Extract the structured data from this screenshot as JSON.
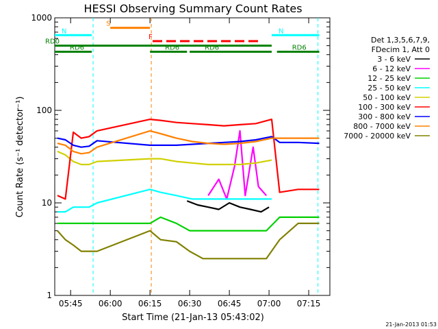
{
  "chart_data": {
    "type": "line",
    "title": "HESSI Observing Summary Count Rates",
    "xlabel": "Start Time (21-Jan-13 05:43:02)",
    "ylabel": "Count Rate (s⁻¹ detector⁻¹)",
    "y_scale": "log",
    "xlim_min": [
      0,
      100
    ],
    "ylim": [
      1,
      1000
    ],
    "x_ticks": [
      {
        "label": "05:45",
        "value": 2
      },
      {
        "label": "06:00",
        "value": 17
      },
      {
        "label": "06:15",
        "value": 32
      },
      {
        "label": "06:30",
        "value": 47
      },
      {
        "label": "06:45",
        "value": 62
      },
      {
        "label": "07:00",
        "value": 77
      },
      {
        "label": "07:15",
        "value": 92
      }
    ],
    "y_ticks": [
      {
        "label": "1",
        "value": 1
      },
      {
        "label": "10",
        "value": 10
      },
      {
        "label": "100",
        "value": 100
      },
      {
        "label": "1000",
        "value": 1000
      }
    ],
    "legend_header": [
      "Det 1,3,5,6,7,9,",
      "FDecim 1, Att 0"
    ],
    "series": [
      {
        "name": "3 - 6 keV",
        "color": "#000000",
        "points": [
          [
            46,
            10.5
          ],
          [
            50,
            9.5
          ],
          [
            54,
            9
          ],
          [
            58,
            8.5
          ],
          [
            62,
            10
          ],
          [
            66,
            9
          ],
          [
            70,
            8.5
          ],
          [
            74,
            8
          ],
          [
            77,
            9
          ]
        ]
      },
      {
        "name": "6 - 12 keV",
        "color": "#ff00ff",
        "points": [
          [
            54,
            12
          ],
          [
            58,
            18
          ],
          [
            61,
            11
          ],
          [
            64,
            25
          ],
          [
            66,
            60
          ],
          [
            68,
            12
          ],
          [
            71,
            40
          ],
          [
            73,
            15
          ],
          [
            76,
            12
          ]
        ]
      },
      {
        "name": "12 - 25 keV",
        "color": "#00d000",
        "points": [
          [
            -3,
            6
          ],
          [
            3,
            6
          ],
          [
            8,
            6
          ],
          [
            12,
            6
          ],
          [
            32,
            6
          ],
          [
            36,
            7
          ],
          [
            42,
            6
          ],
          [
            47,
            5
          ],
          [
            52,
            5
          ],
          [
            58,
            5
          ],
          [
            64,
            5
          ],
          [
            70,
            5
          ],
          [
            76,
            5
          ],
          [
            81,
            7
          ],
          [
            88,
            7
          ],
          [
            96,
            7
          ]
        ]
      },
      {
        "name": "25 - 50 keV",
        "color": "#00ffff",
        "points": [
          [
            -3,
            8
          ],
          [
            0,
            8
          ],
          [
            3,
            9
          ],
          [
            6,
            9
          ],
          [
            9,
            9
          ],
          [
            12,
            10
          ],
          [
            32,
            14
          ],
          [
            36,
            13
          ],
          [
            42,
            12
          ],
          [
            48,
            11
          ],
          [
            54,
            11
          ],
          [
            60,
            11
          ],
          [
            66,
            11
          ],
          [
            72,
            11
          ],
          [
            78,
            11
          ]
        ]
      },
      {
        "name": "50 - 100 keV",
        "color": "#d0d000",
        "points": [
          [
            -3,
            36
          ],
          [
            0,
            33
          ],
          [
            3,
            28
          ],
          [
            6,
            26
          ],
          [
            9,
            26
          ],
          [
            12,
            28
          ],
          [
            32,
            30
          ],
          [
            36,
            30
          ],
          [
            42,
            28
          ],
          [
            48,
            27
          ],
          [
            54,
            26
          ],
          [
            60,
            26
          ],
          [
            66,
            26
          ],
          [
            72,
            27
          ],
          [
            78,
            29
          ]
        ]
      },
      {
        "name": "100 - 300 keV",
        "color": "#ff0000",
        "points": [
          [
            -3,
            12
          ],
          [
            0,
            11
          ],
          [
            3,
            58
          ],
          [
            6,
            50
          ],
          [
            9,
            52
          ],
          [
            12,
            60
          ],
          [
            32,
            80
          ],
          [
            36,
            78
          ],
          [
            42,
            74
          ],
          [
            48,
            72
          ],
          [
            54,
            70
          ],
          [
            60,
            68
          ],
          [
            66,
            70
          ],
          [
            72,
            72
          ],
          [
            78,
            80
          ],
          [
            81,
            13
          ],
          [
            88,
            14
          ],
          [
            96,
            14
          ]
        ]
      },
      {
        "name": "300 - 800 keV",
        "color": "#0000ff",
        "points": [
          [
            -3,
            50
          ],
          [
            0,
            48
          ],
          [
            3,
            42
          ],
          [
            6,
            40
          ],
          [
            9,
            41
          ],
          [
            12,
            47
          ],
          [
            32,
            42
          ],
          [
            36,
            42
          ],
          [
            42,
            42
          ],
          [
            48,
            43
          ],
          [
            54,
            44
          ],
          [
            60,
            45
          ],
          [
            66,
            46
          ],
          [
            72,
            48
          ],
          [
            78,
            52
          ],
          [
            81,
            45
          ],
          [
            88,
            45
          ],
          [
            96,
            44
          ]
        ]
      },
      {
        "name": "800 - 7000 keV",
        "color": "#ff8000",
        "points": [
          [
            -3,
            44
          ],
          [
            0,
            42
          ],
          [
            3,
            36
          ],
          [
            6,
            34
          ],
          [
            9,
            35
          ],
          [
            12,
            40
          ],
          [
            32,
            60
          ],
          [
            36,
            56
          ],
          [
            42,
            50
          ],
          [
            48,
            46
          ],
          [
            54,
            44
          ],
          [
            60,
            43
          ],
          [
            66,
            44
          ],
          [
            72,
            46
          ],
          [
            78,
            50
          ],
          [
            81,
            50
          ],
          [
            88,
            50
          ],
          [
            96,
            50
          ]
        ]
      },
      {
        "name": "7000 - 20000 keV",
        "color": "#808000",
        "points": [
          [
            -3,
            5
          ],
          [
            0,
            4
          ],
          [
            3,
            3.5
          ],
          [
            6,
            3
          ],
          [
            9,
            3
          ],
          [
            12,
            3
          ],
          [
            32,
            5
          ],
          [
            36,
            4
          ],
          [
            42,
            3.8
          ],
          [
            47,
            3
          ],
          [
            52,
            2.5
          ],
          [
            58,
            2.5
          ],
          [
            64,
            2.5
          ],
          [
            70,
            2.5
          ],
          [
            76,
            2.5
          ],
          [
            81,
            4
          ],
          [
            88,
            6
          ],
          [
            96,
            6
          ]
        ]
      }
    ],
    "state_bars": [
      {
        "label": "S",
        "color": "#ff8000",
        "y": 780,
        "x1": 17,
        "x2": 32
      },
      {
        "label": "N",
        "color": "#00ffff",
        "y": 650,
        "x1": -4,
        "x2": 10
      },
      {
        "label": "N",
        "color": "#00ffff",
        "y": 650,
        "x1": 78,
        "x2": 96
      },
      {
        "label": "F",
        "color": "#ff0000",
        "y": 560,
        "x1": 33,
        "x2": 74
      },
      {
        "label": "RD0",
        "color": "#008000",
        "y": 500,
        "x1": -4,
        "x2": 78
      },
      {
        "label": "RD6",
        "color": "#008000",
        "y": 430,
        "x1": -4,
        "x2": 10
      },
      {
        "label": "RD6",
        "color": "#008000",
        "y": 430,
        "x1": 32,
        "x2": 46
      },
      {
        "label": "RD6",
        "color": "#008000",
        "y": 430,
        "x1": 47,
        "x2": 78
      },
      {
        "label": "RD6",
        "color": "#008000",
        "y": 430,
        "x1": 80,
        "x2": 96
      }
    ],
    "vlines": [
      {
        "x": 10.5,
        "color": "#00ffff",
        "style": "dashed"
      },
      {
        "x": 32.5,
        "color": "#ff8000",
        "style": "dashed"
      },
      {
        "x": 95.5,
        "color": "#00ffff",
        "style": "dashed"
      }
    ],
    "footer_date": "21-Jan-2013 01:53",
    "grid": false,
    "legend_position": "right"
  }
}
